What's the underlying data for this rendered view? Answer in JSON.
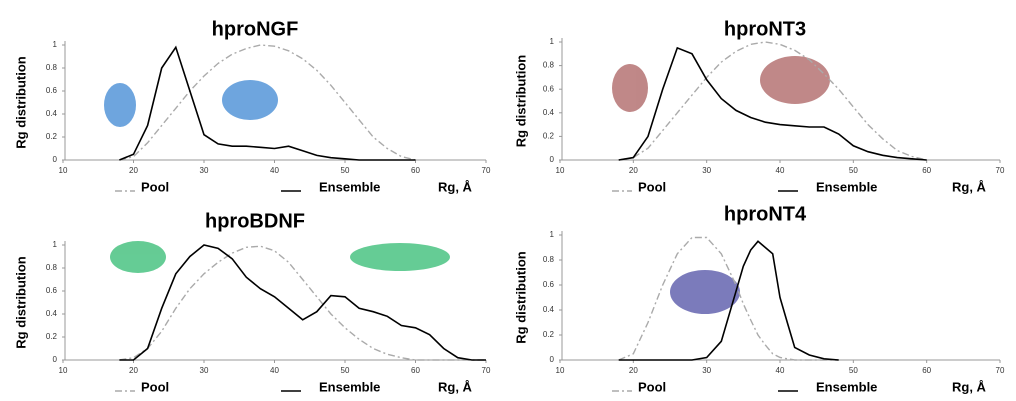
{
  "chart_data": [
    {
      "type": "line",
      "title": "hproNGF",
      "ylabel": "Rg distribution",
      "xlabel": "Rg, Å",
      "x": [
        18,
        20,
        22,
        24,
        26,
        28,
        30,
        32,
        34,
        36,
        38,
        40,
        42,
        44,
        46,
        48,
        50,
        52,
        54,
        56,
        58,
        60
      ],
      "series": [
        {
          "name": "Pool",
          "color": "#aaaaaa",
          "values": [
            0,
            0.03,
            0.15,
            0.3,
            0.45,
            0.6,
            0.73,
            0.84,
            0.92,
            0.97,
            1,
            0.99,
            0.95,
            0.88,
            0.78,
            0.65,
            0.5,
            0.35,
            0.2,
            0.1,
            0.03,
            0
          ]
        },
        {
          "name": "Ensemble",
          "color": "#000000",
          "values": [
            0,
            0.05,
            0.3,
            0.8,
            0.98,
            0.6,
            0.22,
            0.14,
            0.12,
            0.12,
            0.11,
            0.1,
            0.12,
            0.08,
            0.04,
            0.02,
            0.01,
            0,
            0,
            0,
            0,
            0
          ]
        }
      ],
      "xlim": [
        10,
        70
      ],
      "xticks": [
        10,
        20,
        30,
        40,
        50,
        60,
        70
      ],
      "ylim": [
        0,
        1
      ],
      "yticks": [
        0,
        0.2,
        0.4,
        0.6,
        0.8,
        1
      ]
    },
    {
      "type": "line",
      "title": "hproNT3",
      "ylabel": "Rg distribution",
      "xlabel": "Rg, Å",
      "x": [
        18,
        20,
        22,
        24,
        26,
        28,
        30,
        32,
        34,
        36,
        38,
        40,
        42,
        44,
        46,
        48,
        50,
        52,
        54,
        56,
        58,
        60
      ],
      "series": [
        {
          "name": "Pool",
          "color": "#aaaaaa",
          "values": [
            0,
            0.02,
            0.1,
            0.25,
            0.4,
            0.55,
            0.7,
            0.83,
            0.92,
            0.98,
            1,
            0.98,
            0.93,
            0.85,
            0.73,
            0.6,
            0.45,
            0.3,
            0.18,
            0.08,
            0.03,
            0
          ]
        },
        {
          "name": "Ensemble",
          "color": "#000000",
          "values": [
            0,
            0.02,
            0.2,
            0.6,
            0.95,
            0.9,
            0.68,
            0.52,
            0.42,
            0.36,
            0.32,
            0.3,
            0.29,
            0.28,
            0.28,
            0.22,
            0.12,
            0.07,
            0.04,
            0.02,
            0.01,
            0
          ]
        }
      ],
      "xlim": [
        10,
        70
      ],
      "xticks": [
        10,
        20,
        30,
        40,
        50,
        60,
        70
      ],
      "ylim": [
        0,
        1
      ],
      "yticks": [
        0,
        0.2,
        0.4,
        0.6,
        0.8,
        1
      ]
    },
    {
      "type": "line",
      "title": "hproBDNF",
      "ylabel": "Rg distribution",
      "xlabel": "Rg, Å",
      "x": [
        18,
        20,
        22,
        24,
        26,
        28,
        30,
        32,
        34,
        36,
        38,
        40,
        42,
        44,
        46,
        48,
        50,
        52,
        54,
        56,
        58,
        60,
        62,
        64,
        66,
        68,
        70
      ],
      "series": [
        {
          "name": "Pool",
          "color": "#aaaaaa",
          "values": [
            0,
            0.02,
            0.1,
            0.25,
            0.45,
            0.62,
            0.75,
            0.85,
            0.93,
            0.98,
            0.99,
            0.95,
            0.85,
            0.7,
            0.55,
            0.4,
            0.28,
            0.18,
            0.1,
            0.05,
            0.02,
            0,
            0,
            0,
            0,
            0,
            0
          ]
        },
        {
          "name": "Ensemble",
          "color": "#000000",
          "values": [
            0,
            0,
            0.1,
            0.45,
            0.75,
            0.9,
            1,
            0.97,
            0.88,
            0.72,
            0.62,
            0.55,
            0.45,
            0.35,
            0.42,
            0.56,
            0.55,
            0.45,
            0.42,
            0.38,
            0.3,
            0.28,
            0.22,
            0.1,
            0.02,
            0,
            0
          ]
        }
      ],
      "xlim": [
        10,
        70
      ],
      "xticks": [
        10,
        20,
        30,
        40,
        50,
        60,
        70
      ],
      "ylim": [
        0,
        1
      ],
      "yticks": [
        0,
        0.2,
        0.4,
        0.6,
        0.8,
        1
      ]
    },
    {
      "type": "line",
      "title": "hproNT4",
      "ylabel": "Rg distribution",
      "xlabel": "Rg, Å",
      "x": [
        18,
        20,
        22,
        24,
        26,
        28,
        30,
        32,
        34,
        35,
        36,
        37,
        38,
        39,
        40,
        41,
        42,
        44,
        46,
        48
      ],
      "series": [
        {
          "name": "Pool",
          "color": "#aaaaaa",
          "values": [
            0,
            0.05,
            0.3,
            0.6,
            0.85,
            0.98,
            0.98,
            0.85,
            0.6,
            0.45,
            0.32,
            0.2,
            0.12,
            0.05,
            0.02,
            0.01,
            0,
            0,
            0,
            0
          ]
        },
        {
          "name": "Ensemble",
          "color": "#000000",
          "values": [
            0,
            0,
            0,
            0,
            0,
            0,
            0.02,
            0.15,
            0.55,
            0.75,
            0.88,
            0.95,
            0.9,
            0.85,
            0.5,
            0.3,
            0.1,
            0.04,
            0.01,
            0
          ]
        }
      ],
      "xlim": [
        10,
        70
      ],
      "xticks": [
        10,
        20,
        30,
        40,
        50,
        60,
        70
      ],
      "ylim": [
        0,
        1
      ],
      "yticks": [
        0,
        0.2,
        0.4,
        0.6,
        0.8,
        1
      ]
    }
  ]
}
